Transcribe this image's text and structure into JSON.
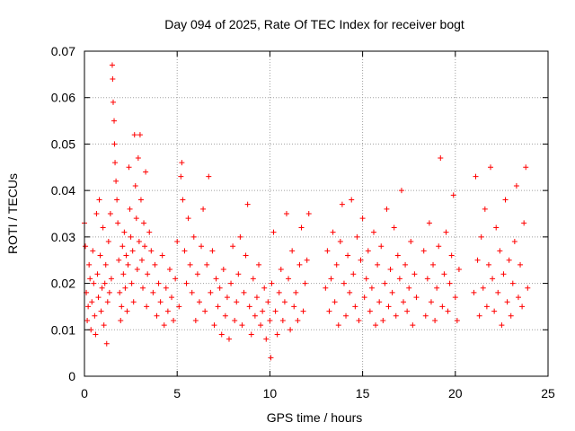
{
  "colors": {
    "series": "#ff0000",
    "grid": "#a0a0a0",
    "axis": "#000000",
    "background": "#ffffff"
  },
  "chart_data": {
    "type": "scatter",
    "title": "Day 094 of 2025, Rate Of TEC Index for receiver bogt",
    "xlabel": "GPS time / hours",
    "ylabel": "ROTI / TECUs",
    "xlim": [
      0,
      25
    ],
    "ylim": [
      0,
      0.07
    ],
    "xticks": [
      0,
      5,
      10,
      15,
      20,
      25
    ],
    "yticks": [
      0,
      0.01,
      0.02,
      0.03,
      0.04,
      0.05,
      0.06,
      0.07
    ],
    "xtick_labels": [
      "0",
      "5",
      "10",
      "15",
      "20",
      "25"
    ],
    "ytick_labels": [
      "0",
      "0.01",
      "0.02",
      "0.03",
      "0.04",
      "0.05",
      "0.06",
      "0.07"
    ],
    "grid": true,
    "marker": "plus",
    "series": [
      {
        "points": [
          [
            0.0,
            0.033
          ],
          [
            0.05,
            0.028
          ],
          [
            0.1,
            0.018
          ],
          [
            0.15,
            0.012
          ],
          [
            0.2,
            0.015
          ],
          [
            0.25,
            0.024
          ],
          [
            0.3,
            0.021
          ],
          [
            0.35,
            0.01
          ],
          [
            0.4,
            0.016
          ],
          [
            0.45,
            0.027
          ],
          [
            0.5,
            0.02
          ],
          [
            0.55,
            0.013
          ],
          [
            0.6,
            0.009
          ],
          [
            0.65,
            0.035
          ],
          [
            0.7,
            0.022
          ],
          [
            0.75,
            0.017
          ],
          [
            0.8,
            0.038
          ],
          [
            0.85,
            0.026
          ],
          [
            0.9,
            0.014
          ],
          [
            0.95,
            0.019
          ],
          [
            1.0,
            0.032
          ],
          [
            1.05,
            0.011
          ],
          [
            1.1,
            0.02
          ],
          [
            1.15,
            0.024
          ],
          [
            1.2,
            0.007
          ],
          [
            1.25,
            0.016
          ],
          [
            1.3,
            0.029
          ],
          [
            1.35,
            0.018
          ],
          [
            1.4,
            0.035
          ],
          [
            1.45,
            0.021
          ],
          [
            1.5,
            0.067
          ],
          [
            1.52,
            0.064
          ],
          [
            1.55,
            0.059
          ],
          [
            1.6,
            0.055
          ],
          [
            1.62,
            0.05
          ],
          [
            1.65,
            0.046
          ],
          [
            1.7,
            0.042
          ],
          [
            1.75,
            0.038
          ],
          [
            1.8,
            0.033
          ],
          [
            1.85,
            0.025
          ],
          [
            1.9,
            0.018
          ],
          [
            1.95,
            0.012
          ],
          [
            2.0,
            0.015
          ],
          [
            2.05,
            0.028
          ],
          [
            2.1,
            0.022
          ],
          [
            2.15,
            0.031
          ],
          [
            2.2,
            0.019
          ],
          [
            2.25,
            0.026
          ],
          [
            2.3,
            0.014
          ],
          [
            2.35,
            0.024
          ],
          [
            2.4,
            0.045
          ],
          [
            2.45,
            0.036
          ],
          [
            2.5,
            0.03
          ],
          [
            2.55,
            0.02
          ],
          [
            2.6,
            0.027
          ],
          [
            2.65,
            0.016
          ],
          [
            2.7,
            0.052
          ],
          [
            2.75,
            0.041
          ],
          [
            2.8,
            0.034
          ],
          [
            2.85,
            0.023
          ],
          [
            2.9,
            0.047
          ],
          [
            2.95,
            0.029
          ],
          [
            3.0,
            0.052
          ],
          [
            3.05,
            0.038
          ],
          [
            3.1,
            0.025
          ],
          [
            3.15,
            0.019
          ],
          [
            3.2,
            0.033
          ],
          [
            3.25,
            0.028
          ],
          [
            3.3,
            0.044
          ],
          [
            3.35,
            0.015
          ],
          [
            3.4,
            0.022
          ],
          [
            3.5,
            0.031
          ],
          [
            3.6,
            0.027
          ],
          [
            3.7,
            0.018
          ],
          [
            3.8,
            0.024
          ],
          [
            3.9,
            0.013
          ],
          [
            4.0,
            0.02
          ],
          [
            4.1,
            0.016
          ],
          [
            4.2,
            0.026
          ],
          [
            4.3,
            0.011
          ],
          [
            4.4,
            0.019
          ],
          [
            4.5,
            0.014
          ],
          [
            4.6,
            0.023
          ],
          [
            4.7,
            0.017
          ],
          [
            4.8,
            0.012
          ],
          [
            4.9,
            0.021
          ],
          [
            5.0,
            0.029
          ],
          [
            5.1,
            0.015
          ],
          [
            5.2,
            0.043
          ],
          [
            5.25,
            0.046
          ],
          [
            5.3,
            0.038
          ],
          [
            5.4,
            0.027
          ],
          [
            5.5,
            0.02
          ],
          [
            5.6,
            0.034
          ],
          [
            5.7,
            0.024
          ],
          [
            5.8,
            0.018
          ],
          [
            5.9,
            0.03
          ],
          [
            6.0,
            0.012
          ],
          [
            6.1,
            0.022
          ],
          [
            6.2,
            0.016
          ],
          [
            6.3,
            0.028
          ],
          [
            6.4,
            0.036
          ],
          [
            6.5,
            0.014
          ],
          [
            6.6,
            0.024
          ],
          [
            6.7,
            0.043
          ],
          [
            6.8,
            0.018
          ],
          [
            6.9,
            0.027
          ],
          [
            7.0,
            0.011
          ],
          [
            7.1,
            0.021
          ],
          [
            7.2,
            0.015
          ],
          [
            7.3,
            0.019
          ],
          [
            7.4,
            0.009
          ],
          [
            7.5,
            0.023
          ],
          [
            7.6,
            0.013
          ],
          [
            7.7,
            0.017
          ],
          [
            7.8,
            0.008
          ],
          [
            7.9,
            0.02
          ],
          [
            8.0,
            0.028
          ],
          [
            8.1,
            0.012
          ],
          [
            8.2,
            0.016
          ],
          [
            8.3,
            0.022
          ],
          [
            8.4,
            0.03
          ],
          [
            8.5,
            0.011
          ],
          [
            8.6,
            0.018
          ],
          [
            8.7,
            0.026
          ],
          [
            8.8,
            0.037
          ],
          [
            8.9,
            0.015
          ],
          [
            9.0,
            0.009
          ],
          [
            9.1,
            0.021
          ],
          [
            9.2,
            0.013
          ],
          [
            9.3,
            0.017
          ],
          [
            9.4,
            0.024
          ],
          [
            9.5,
            0.011
          ],
          [
            9.6,
            0.014
          ],
          [
            9.7,
            0.019
          ],
          [
            9.8,
            0.008
          ],
          [
            9.9,
            0.016
          ],
          [
            10.0,
            0.012
          ],
          [
            10.05,
            0.004
          ],
          [
            10.1,
            0.02
          ],
          [
            10.2,
            0.031
          ],
          [
            10.3,
            0.014
          ],
          [
            10.4,
            0.009
          ],
          [
            10.5,
            0.018
          ],
          [
            10.6,
            0.023
          ],
          [
            10.7,
            0.012
          ],
          [
            10.8,
            0.016
          ],
          [
            10.9,
            0.035
          ],
          [
            11.0,
            0.021
          ],
          [
            11.1,
            0.01
          ],
          [
            11.2,
            0.027
          ],
          [
            11.3,
            0.015
          ],
          [
            11.4,
            0.018
          ],
          [
            11.5,
            0.012
          ],
          [
            11.6,
            0.024
          ],
          [
            11.7,
            0.032
          ],
          [
            11.8,
            0.014
          ],
          [
            11.9,
            0.02
          ],
          [
            12.0,
            0.025
          ],
          [
            12.1,
            0.035
          ],
          [
            13.0,
            0.019
          ],
          [
            13.1,
            0.027
          ],
          [
            13.2,
            0.014
          ],
          [
            13.3,
            0.021
          ],
          [
            13.4,
            0.031
          ],
          [
            13.5,
            0.016
          ],
          [
            13.6,
            0.024
          ],
          [
            13.7,
            0.011
          ],
          [
            13.8,
            0.029
          ],
          [
            13.9,
            0.037
          ],
          [
            14.0,
            0.02
          ],
          [
            14.1,
            0.013
          ],
          [
            14.2,
            0.026
          ],
          [
            14.3,
            0.018
          ],
          [
            14.4,
            0.038
          ],
          [
            14.5,
            0.022
          ],
          [
            14.6,
            0.015
          ],
          [
            14.7,
            0.03
          ],
          [
            14.8,
            0.012
          ],
          [
            14.9,
            0.025
          ],
          [
            15.0,
            0.034
          ],
          [
            15.1,
            0.017
          ],
          [
            15.2,
            0.021
          ],
          [
            15.3,
            0.027
          ],
          [
            15.4,
            0.014
          ],
          [
            15.5,
            0.019
          ],
          [
            15.6,
            0.031
          ],
          [
            15.7,
            0.011
          ],
          [
            15.8,
            0.024
          ],
          [
            15.9,
            0.016
          ],
          [
            16.0,
            0.028
          ],
          [
            16.1,
            0.012
          ],
          [
            16.2,
            0.02
          ],
          [
            16.3,
            0.036
          ],
          [
            16.4,
            0.015
          ],
          [
            16.5,
            0.023
          ],
          [
            16.6,
            0.018
          ],
          [
            16.7,
            0.032
          ],
          [
            16.8,
            0.013
          ],
          [
            16.9,
            0.026
          ],
          [
            17.0,
            0.021
          ],
          [
            17.1,
            0.04
          ],
          [
            17.2,
            0.016
          ],
          [
            17.3,
            0.024
          ],
          [
            17.4,
            0.014
          ],
          [
            17.5,
            0.019
          ],
          [
            17.6,
            0.029
          ],
          [
            17.7,
            0.011
          ],
          [
            17.8,
            0.022
          ],
          [
            17.9,
            0.017
          ],
          [
            18.3,
            0.027
          ],
          [
            18.4,
            0.013
          ],
          [
            18.5,
            0.021
          ],
          [
            18.6,
            0.033
          ],
          [
            18.7,
            0.016
          ],
          [
            18.8,
            0.024
          ],
          [
            18.9,
            0.012
          ],
          [
            19.0,
            0.019
          ],
          [
            19.1,
            0.028
          ],
          [
            19.2,
            0.047
          ],
          [
            19.3,
            0.015
          ],
          [
            19.4,
            0.022
          ],
          [
            19.5,
            0.031
          ],
          [
            19.6,
            0.014
          ],
          [
            19.7,
            0.02
          ],
          [
            19.8,
            0.026
          ],
          [
            19.9,
            0.039
          ],
          [
            20.0,
            0.017
          ],
          [
            20.1,
            0.012
          ],
          [
            20.2,
            0.023
          ],
          [
            21.0,
            0.018
          ],
          [
            21.1,
            0.043
          ],
          [
            21.2,
            0.025
          ],
          [
            21.3,
            0.013
          ],
          [
            21.4,
            0.03
          ],
          [
            21.5,
            0.019
          ],
          [
            21.6,
            0.036
          ],
          [
            21.7,
            0.015
          ],
          [
            21.8,
            0.024
          ],
          [
            21.9,
            0.045
          ],
          [
            22.0,
            0.021
          ],
          [
            22.1,
            0.014
          ],
          [
            22.2,
            0.032
          ],
          [
            22.3,
            0.018
          ],
          [
            22.4,
            0.027
          ],
          [
            22.5,
            0.011
          ],
          [
            22.6,
            0.022
          ],
          [
            22.7,
            0.038
          ],
          [
            22.8,
            0.016
          ],
          [
            22.9,
            0.025
          ],
          [
            23.0,
            0.013
          ],
          [
            23.1,
            0.02
          ],
          [
            23.2,
            0.029
          ],
          [
            23.3,
            0.041
          ],
          [
            23.4,
            0.017
          ],
          [
            23.5,
            0.024
          ],
          [
            23.6,
            0.015
          ],
          [
            23.7,
            0.033
          ],
          [
            23.8,
            0.045
          ],
          [
            23.9,
            0.019
          ]
        ]
      }
    ]
  }
}
